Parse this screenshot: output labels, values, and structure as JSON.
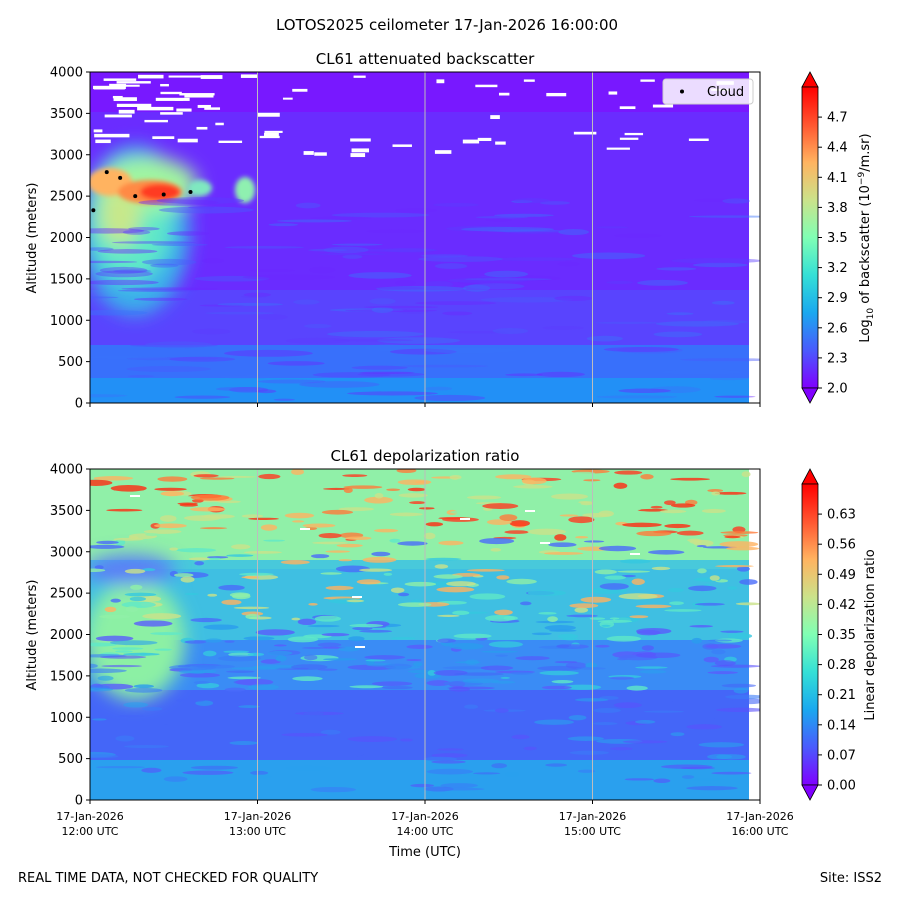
{
  "figure": {
    "title": "LOTOS2025 ceilometer 17-Jan-2026 16:00:00",
    "footer_left": "REAL TIME DATA, NOT CHECKED FOR QUALITY",
    "footer_right": "Site: ISS2"
  },
  "chart_data": [
    {
      "type": "heatmap",
      "title": "CL61 attenuated backscatter",
      "xlabel": "",
      "ylabel": "Altitude (meters)",
      "ylim": [
        0,
        4000
      ],
      "xlim_hours": [
        12,
        16
      ],
      "yticks": [
        "0",
        "500",
        "1000",
        "1500",
        "2000",
        "2500",
        "3000",
        "3500",
        "4000"
      ],
      "xticks": [],
      "grid": "vertical lines at each hour",
      "colormap": "rainbow",
      "colorbar": {
        "label_prefix": "Log",
        "label_sub": "10",
        "label_mid": " of backscatter (10",
        "label_sup": "−9",
        "label_suffix": "/m.sr)",
        "range": [
          2.0,
          5.0
        ],
        "ticks": [
          "2.0",
          "2.3",
          "2.6",
          "2.9",
          "3.2",
          "3.5",
          "3.8",
          "4.1",
          "4.4",
          "4.7"
        ],
        "extend": "both"
      },
      "legend": {
        "placement": "top-right",
        "entries": [
          "Cloud"
        ]
      },
      "cloud_points": [
        {
          "time_h": 12.02,
          "alt_m": 2330
        },
        {
          "time_h": 12.1,
          "alt_m": 2790
        },
        {
          "time_h": 12.18,
          "alt_m": 2720
        },
        {
          "time_h": 12.27,
          "alt_m": 2500
        },
        {
          "time_h": 12.44,
          "alt_m": 2520
        },
        {
          "time_h": 12.6,
          "alt_m": 2550
        }
      ],
      "features": "High backscatter cloud layer near 2300–2900 m from 12:00 to ~12:35 UTC with a small patch near 2600 m at ~12:55 UTC; background low values (~2.0–2.6) above, values ~2.6–2.8 near surface."
    },
    {
      "type": "heatmap",
      "title": "CL61 depolarization ratio",
      "xlabel": "Time (UTC)",
      "ylabel": "Altitude (meters)",
      "ylim": [
        0,
        4000
      ],
      "xlim_hours": [
        12,
        16
      ],
      "yticks": [
        "0",
        "500",
        "1000",
        "1500",
        "2000",
        "2500",
        "3000",
        "3500",
        "4000"
      ],
      "xticks": [
        {
          "date": "17-Jan-2026",
          "time": "12:00 UTC"
        },
        {
          "date": "17-Jan-2026",
          "time": "13:00 UTC"
        },
        {
          "date": "17-Jan-2026",
          "time": "14:00 UTC"
        },
        {
          "date": "17-Jan-2026",
          "time": "15:00 UTC"
        },
        {
          "date": "17-Jan-2026",
          "time": "16:00 UTC"
        }
      ],
      "grid": "vertical lines at each hour",
      "colormap": "rainbow",
      "colorbar": {
        "label": "Linear depolarization ratio",
        "range": [
          0.0,
          0.7
        ],
        "ticks": [
          "0.00",
          "0.07",
          "0.14",
          "0.21",
          "0.28",
          "0.35",
          "0.42",
          "0.49",
          "0.56",
          "0.63"
        ],
        "extend": "both"
      },
      "features": "Low ratios (~0.07–0.14) near surface, ~0.2–0.35 at mid levels, ~0.35–0.63 above 3000 m with scattered high streaks; elevated ~0.35–0.42 patch 1500–2600 m before 12:35 UTC."
    }
  ]
}
